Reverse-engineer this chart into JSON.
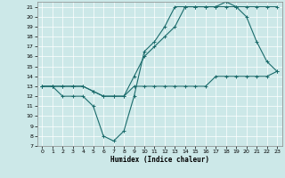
{
  "xlabel": "Humidex (Indice chaleur)",
  "xlim": [
    -0.5,
    23.5
  ],
  "ylim": [
    7,
    21.5
  ],
  "yticks": [
    7,
    8,
    9,
    10,
    11,
    12,
    13,
    14,
    15,
    16,
    17,
    18,
    19,
    20,
    21
  ],
  "xticks": [
    0,
    1,
    2,
    3,
    4,
    5,
    6,
    7,
    8,
    9,
    10,
    11,
    12,
    13,
    14,
    15,
    16,
    17,
    18,
    19,
    20,
    21,
    22,
    23
  ],
  "bg_color": "#cce8e8",
  "grid_color": "#ffffff",
  "line_color": "#1a6b6b",
  "line1_x": [
    0,
    1,
    2,
    3,
    4,
    5,
    6,
    7,
    8,
    9,
    10,
    11,
    12,
    13,
    14,
    15,
    16,
    17,
    18,
    19,
    20,
    21,
    22,
    23
  ],
  "line1_y": [
    13,
    13,
    13,
    13,
    13,
    12.5,
    12,
    12,
    12,
    13,
    13,
    13,
    13,
    13,
    13,
    13,
    13,
    14,
    14,
    14,
    14,
    14,
    14,
    14.5
  ],
  "line2_x": [
    0,
    1,
    2,
    3,
    4,
    5,
    6,
    7,
    8,
    9,
    10,
    11,
    12,
    13,
    14,
    15,
    16,
    17,
    18,
    19,
    20,
    21,
    22,
    23
  ],
  "line2_y": [
    13,
    13,
    12,
    12,
    12,
    11,
    8,
    7.5,
    8.5,
    12,
    16.5,
    17.5,
    19,
    21,
    21,
    21,
    21,
    21,
    21.5,
    21,
    20,
    17.5,
    15.5,
    14.5
  ],
  "line3_x": [
    0,
    1,
    2,
    3,
    4,
    5,
    6,
    7,
    8,
    9,
    10,
    11,
    12,
    13,
    14,
    15,
    16,
    17,
    18,
    19,
    20,
    21,
    22,
    23
  ],
  "line3_y": [
    13,
    13,
    13,
    13,
    13,
    12.5,
    12,
    12,
    12,
    14,
    16,
    17,
    18,
    19,
    21,
    21,
    21,
    21,
    21,
    21,
    21,
    21,
    21,
    21
  ]
}
